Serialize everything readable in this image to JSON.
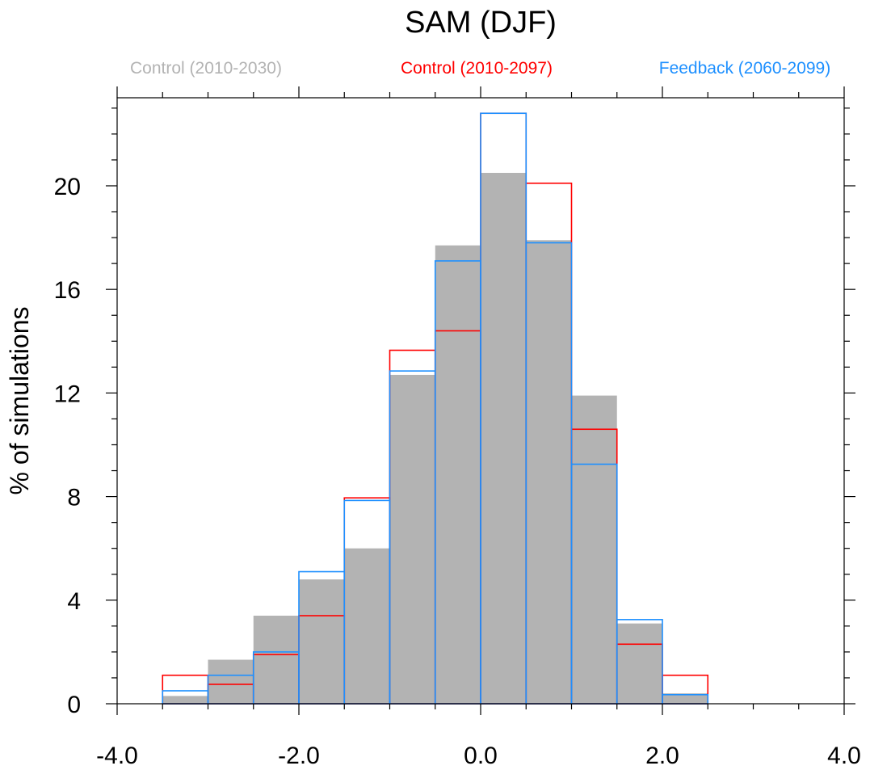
{
  "chart_data": {
    "type": "bar",
    "title": "SAM (DJF)",
    "xlabel": "",
    "ylabel": "% of simulations",
    "xlim": [
      -4.0,
      4.0
    ],
    "ylim": [
      0,
      23.4
    ],
    "x_ticks": [
      -4.0,
      -2.0,
      0.0,
      2.0,
      4.0
    ],
    "x_tick_labels": [
      "-4.0",
      "-2.0",
      "0.0",
      "2.0",
      "4.0"
    ],
    "y_ticks": [
      0,
      4,
      8,
      12,
      16,
      20
    ],
    "y_tick_labels": [
      "0",
      "4",
      "8",
      "12",
      "16",
      "20"
    ],
    "bin_edges": [
      -3.5,
      -3.0,
      -2.5,
      -2.0,
      -1.5,
      -1.0,
      -0.5,
      0.0,
      0.5,
      1.0,
      1.5,
      2.0,
      2.5
    ],
    "grid": false,
    "legend_position": "top",
    "series": [
      {
        "name": "Control (2010-2030)",
        "style": "filled",
        "color": "#b3b3b3",
        "values": [
          0.3,
          1.7,
          3.4,
          4.8,
          6.0,
          12.7,
          17.7,
          20.5,
          17.9,
          11.9,
          3.1,
          0.4
        ]
      },
      {
        "name": "Control (2010-2097)",
        "style": "outline",
        "color": "#ff0000",
        "values": [
          1.1,
          0.75,
          1.9,
          3.4,
          7.95,
          13.65,
          14.4,
          22.8,
          20.1,
          10.6,
          2.3,
          1.1
        ]
      },
      {
        "name": "Feedback (2060-2099)",
        "style": "outline",
        "color": "#1e90ff",
        "values": [
          0.5,
          1.1,
          2.0,
          5.1,
          7.85,
          12.85,
          17.1,
          22.8,
          17.8,
          9.25,
          3.25,
          0.35
        ]
      }
    ]
  }
}
